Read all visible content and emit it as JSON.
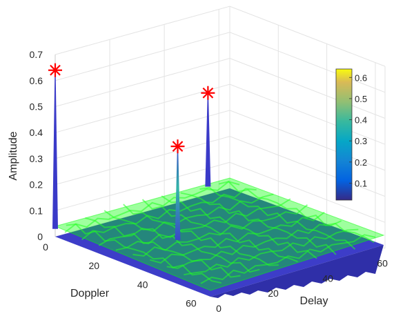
{
  "chart_data": {
    "type": "3d-surface",
    "zlabel": "Amplitude",
    "xlabel": "Doppler",
    "ylabel": "Delay",
    "zlim": [
      0,
      0.7
    ],
    "z_ticks": [
      "0",
      "0.1",
      "0.2",
      "0.3",
      "0.4",
      "0.5",
      "0.6",
      "0.7"
    ],
    "doppler_ticks": [
      "0",
      "20",
      "40",
      "60"
    ],
    "delay_ticks": [
      "0",
      "20",
      "40",
      "60"
    ],
    "doppler_range": [
      0,
      64
    ],
    "delay_range": [
      0,
      64
    ],
    "grid": true,
    "colormap": "parula",
    "surfaces": [
      {
        "name": "",
        "color": "#00ff00",
        "description": "translucent noisy estimate surface"
      },
      {
        "name": "",
        "color": "#3d3dc8",
        "description": "ground-truth surface"
      }
    ],
    "peaks": [
      {
        "doppler": 0,
        "delay": 0,
        "amplitude": 0.64,
        "marker": "*",
        "marker_color": "#ff0000"
      },
      {
        "doppler": 28,
        "delay": 20,
        "amplitude": 0.39,
        "marker": "*",
        "marker_color": "#ff0000"
      },
      {
        "doppler": 0,
        "delay": 56,
        "amplitude": 0.39,
        "marker": "*",
        "marker_color": "#ff0000"
      }
    ],
    "colorbar": {
      "ticks": [
        "0.1",
        "0.2",
        "0.3",
        "0.4",
        "0.5",
        "0.6"
      ],
      "range": [
        0.02,
        0.64
      ],
      "placement": "right"
    }
  }
}
